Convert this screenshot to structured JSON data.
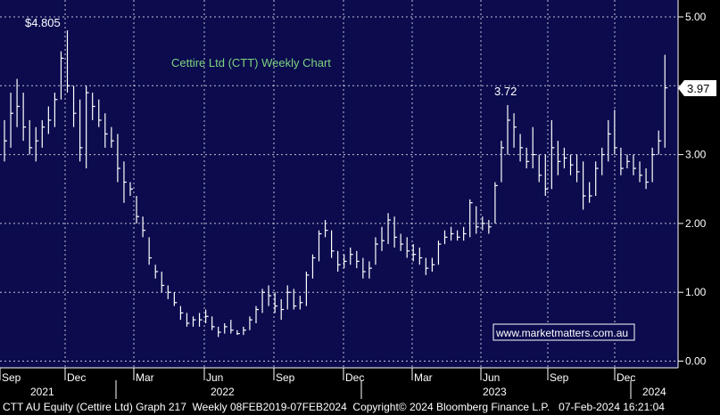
{
  "chart_data": {
    "type": "ohlc",
    "title": "Cettire Ltd (CTT) Weekly Chart",
    "watermark": "www.marketmatters.com.au",
    "ylim": [
      -0.1,
      5.1
    ],
    "y_ticks": [
      {
        "value": 5.0,
        "label": "5.00"
      },
      {
        "value": 4.0,
        "label": "4.00"
      },
      {
        "value": 3.0,
        "label": "3.00"
      },
      {
        "value": 2.0,
        "label": "2.00"
      },
      {
        "value": 1.0,
        "label": "1.00"
      },
      {
        "value": 0.0,
        "label": "0.00"
      }
    ],
    "x_month_labels": [
      "Sep",
      "Dec",
      "Mar",
      "Jun",
      "Sep",
      "Dec",
      "Mar",
      "Jun",
      "Sep",
      "Dec"
    ],
    "x_year_labels": [
      "2021",
      "2022",
      "2023",
      "2024"
    ],
    "last_price_label": "3.97",
    "annotations": [
      "$4.805",
      "3.72"
    ],
    "bars": [
      {
        "t": 0.0,
        "h": 3.5,
        "l": 2.9,
        "c": 3.2
      },
      {
        "t": 0.3,
        "h": 3.9,
        "l": 3.1,
        "c": 3.6
      },
      {
        "t": 0.6,
        "h": 4.1,
        "l": 3.4,
        "c": 3.7
      },
      {
        "t": 0.9,
        "h": 3.9,
        "l": 3.2,
        "c": 3.4
      },
      {
        "t": 1.2,
        "h": 3.5,
        "l": 3.0,
        "c": 3.1
      },
      {
        "t": 1.5,
        "h": 3.4,
        "l": 2.9,
        "c": 3.2
      },
      {
        "t": 1.8,
        "h": 3.5,
        "l": 3.1,
        "c": 3.4
      },
      {
        "t": 2.1,
        "h": 3.7,
        "l": 3.3,
        "c": 3.5
      },
      {
        "t": 2.4,
        "h": 3.9,
        "l": 3.4,
        "c": 3.8
      },
      {
        "t": 2.7,
        "h": 4.5,
        "l": 3.8,
        "c": 4.4
      },
      {
        "t": 3.0,
        "h": 4.805,
        "l": 3.9,
        "c": 4.0
      },
      {
        "t": 3.3,
        "h": 4.0,
        "l": 3.4,
        "c": 3.6
      },
      {
        "t": 3.6,
        "h": 3.8,
        "l": 2.9,
        "c": 3.1
      },
      {
        "t": 3.9,
        "h": 4.0,
        "l": 2.8,
        "c": 3.9
      },
      {
        "t": 4.2,
        "h": 3.9,
        "l": 3.5,
        "c": 3.7
      },
      {
        "t": 4.5,
        "h": 3.8,
        "l": 3.4,
        "c": 3.5
      },
      {
        "t": 4.8,
        "h": 3.6,
        "l": 3.1,
        "c": 3.3
      },
      {
        "t": 5.1,
        "h": 3.4,
        "l": 3.1,
        "c": 3.2
      },
      {
        "t": 5.4,
        "h": 3.3,
        "l": 2.6,
        "c": 2.8
      },
      {
        "t": 5.7,
        "h": 2.9,
        "l": 2.3,
        "c": 2.6
      },
      {
        "t": 6.0,
        "h": 2.6,
        "l": 2.4,
        "c": 2.5
      },
      {
        "t": 6.3,
        "h": 2.4,
        "l": 2.0,
        "c": 2.1
      },
      {
        "t": 6.6,
        "h": 2.1,
        "l": 1.8,
        "c": 1.9
      },
      {
        "t": 6.9,
        "h": 1.8,
        "l": 1.4,
        "c": 1.5
      },
      {
        "t": 7.2,
        "h": 1.4,
        "l": 1.2,
        "c": 1.3
      },
      {
        "t": 7.5,
        "h": 1.3,
        "l": 1.0,
        "c": 1.1
      },
      {
        "t": 7.8,
        "h": 1.1,
        "l": 0.9,
        "c": 1.0
      },
      {
        "t": 8.1,
        "h": 1.0,
        "l": 0.8,
        "c": 0.85
      },
      {
        "t": 8.4,
        "h": 0.8,
        "l": 0.6,
        "c": 0.7
      },
      {
        "t": 8.7,
        "h": 0.7,
        "l": 0.5,
        "c": 0.55
      },
      {
        "t": 9.0,
        "h": 0.65,
        "l": 0.5,
        "c": 0.6
      },
      {
        "t": 9.3,
        "h": 0.7,
        "l": 0.5,
        "c": 0.6
      },
      {
        "t": 9.6,
        "h": 0.75,
        "l": 0.55,
        "c": 0.65
      },
      {
        "t": 9.9,
        "h": 0.65,
        "l": 0.45,
        "c": 0.5
      },
      {
        "t": 10.2,
        "h": 0.5,
        "l": 0.35,
        "c": 0.42
      },
      {
        "t": 10.5,
        "h": 0.55,
        "l": 0.4,
        "c": 0.5
      },
      {
        "t": 10.8,
        "h": 0.6,
        "l": 0.4,
        "c": 0.45
      },
      {
        "t": 11.1,
        "h": 0.45,
        "l": 0.38,
        "c": 0.4
      },
      {
        "t": 11.4,
        "h": 0.5,
        "l": 0.38,
        "c": 0.45
      },
      {
        "t": 11.7,
        "h": 0.65,
        "l": 0.45,
        "c": 0.6
      },
      {
        "t": 12.0,
        "h": 0.8,
        "l": 0.55,
        "c": 0.75
      },
      {
        "t": 12.3,
        "h": 1.05,
        "l": 0.7,
        "c": 1.0
      },
      {
        "t": 12.6,
        "h": 1.1,
        "l": 0.8,
        "c": 0.95
      },
      {
        "t": 12.9,
        "h": 1.0,
        "l": 0.7,
        "c": 0.8
      },
      {
        "t": 13.2,
        "h": 0.9,
        "l": 0.6,
        "c": 0.75
      },
      {
        "t": 13.5,
        "h": 1.1,
        "l": 0.75,
        "c": 1.0
      },
      {
        "t": 13.8,
        "h": 1.05,
        "l": 0.75,
        "c": 0.8
      },
      {
        "t": 14.1,
        "h": 0.95,
        "l": 0.75,
        "c": 0.85
      },
      {
        "t": 14.4,
        "h": 1.3,
        "l": 0.8,
        "c": 1.25
      },
      {
        "t": 14.7,
        "h": 1.55,
        "l": 1.2,
        "c": 1.5
      },
      {
        "t": 15.0,
        "h": 1.9,
        "l": 1.45,
        "c": 1.85
      },
      {
        "t": 15.3,
        "h": 2.05,
        "l": 1.8,
        "c": 1.9
      },
      {
        "t": 15.6,
        "h": 1.9,
        "l": 1.5,
        "c": 1.6
      },
      {
        "t": 15.9,
        "h": 1.6,
        "l": 1.3,
        "c": 1.4
      },
      {
        "t": 16.2,
        "h": 1.55,
        "l": 1.35,
        "c": 1.45
      },
      {
        "t": 16.5,
        "h": 1.65,
        "l": 1.4,
        "c": 1.55
      },
      {
        "t": 16.8,
        "h": 1.6,
        "l": 1.35,
        "c": 1.45
      },
      {
        "t": 17.1,
        "h": 1.5,
        "l": 1.2,
        "c": 1.3
      },
      {
        "t": 17.4,
        "h": 1.45,
        "l": 1.2,
        "c": 1.35
      },
      {
        "t": 17.7,
        "h": 1.8,
        "l": 1.4,
        "c": 1.7
      },
      {
        "t": 18.0,
        "h": 1.95,
        "l": 1.6,
        "c": 1.75
      },
      {
        "t": 18.3,
        "h": 2.15,
        "l": 1.7,
        "c": 2.05
      },
      {
        "t": 18.6,
        "h": 2.1,
        "l": 1.65,
        "c": 1.8
      },
      {
        "t": 18.9,
        "h": 1.85,
        "l": 1.6,
        "c": 1.7
      },
      {
        "t": 19.2,
        "h": 1.8,
        "l": 1.5,
        "c": 1.6
      },
      {
        "t": 19.5,
        "h": 1.7,
        "l": 1.45,
        "c": 1.55
      },
      {
        "t": 19.8,
        "h": 1.65,
        "l": 1.4,
        "c": 1.5
      },
      {
        "t": 20.1,
        "h": 1.5,
        "l": 1.25,
        "c": 1.35
      },
      {
        "t": 20.4,
        "h": 1.5,
        "l": 1.3,
        "c": 1.4
      },
      {
        "t": 20.7,
        "h": 1.75,
        "l": 1.4,
        "c": 1.7
      },
      {
        "t": 21.0,
        "h": 1.9,
        "l": 1.7,
        "c": 1.8
      },
      {
        "t": 21.3,
        "h": 1.95,
        "l": 1.75,
        "c": 1.85
      },
      {
        "t": 21.6,
        "h": 1.9,
        "l": 1.75,
        "c": 1.8
      },
      {
        "t": 21.9,
        "h": 1.95,
        "l": 1.75,
        "c": 1.85
      },
      {
        "t": 22.2,
        "h": 2.35,
        "l": 1.8,
        "c": 2.3
      },
      {
        "t": 22.5,
        "h": 2.25,
        "l": 1.85,
        "c": 1.95
      },
      {
        "t": 22.8,
        "h": 2.1,
        "l": 1.9,
        "c": 2.0
      },
      {
        "t": 23.1,
        "h": 2.05,
        "l": 1.85,
        "c": 1.95
      },
      {
        "t": 23.4,
        "h": 2.6,
        "l": 2.0,
        "c": 2.55
      },
      {
        "t": 23.7,
        "h": 3.2,
        "l": 2.6,
        "c": 3.1
      },
      {
        "t": 24.0,
        "h": 3.72,
        "l": 3.0,
        "c": 3.5
      },
      {
        "t": 24.3,
        "h": 3.6,
        "l": 3.1,
        "c": 3.4
      },
      {
        "t": 24.6,
        "h": 3.3,
        "l": 2.9,
        "c": 3.1
      },
      {
        "t": 24.9,
        "h": 3.1,
        "l": 2.8,
        "c": 2.9
      },
      {
        "t": 25.2,
        "h": 3.4,
        "l": 2.8,
        "c": 3.0
      },
      {
        "t": 25.5,
        "h": 3.0,
        "l": 2.6,
        "c": 2.7
      },
      {
        "t": 25.8,
        "h": 3.0,
        "l": 2.4,
        "c": 2.5
      },
      {
        "t": 26.1,
        "h": 3.5,
        "l": 2.5,
        "c": 3.1
      },
      {
        "t": 26.4,
        "h": 3.2,
        "l": 2.7,
        "c": 2.9
      },
      {
        "t": 26.7,
        "h": 3.1,
        "l": 2.8,
        "c": 2.95
      },
      {
        "t": 27.0,
        "h": 3.0,
        "l": 2.7,
        "c": 2.85
      },
      {
        "t": 27.3,
        "h": 3.0,
        "l": 2.6,
        "c": 2.75
      },
      {
        "t": 27.6,
        "h": 2.9,
        "l": 2.2,
        "c": 2.4
      },
      {
        "t": 27.9,
        "h": 2.6,
        "l": 2.3,
        "c": 2.4
      },
      {
        "t": 28.2,
        "h": 2.9,
        "l": 2.4,
        "c": 2.8
      },
      {
        "t": 28.5,
        "h": 3.1,
        "l": 2.7,
        "c": 3.0
      },
      {
        "t": 28.8,
        "h": 3.5,
        "l": 2.9,
        "c": 3.3
      },
      {
        "t": 29.1,
        "h": 3.65,
        "l": 3.0,
        "c": 3.1
      },
      {
        "t": 29.4,
        "h": 3.1,
        "l": 2.7,
        "c": 2.8
      },
      {
        "t": 29.7,
        "h": 3.0,
        "l": 2.8,
        "c": 2.9
      },
      {
        "t": 30.0,
        "h": 3.0,
        "l": 2.7,
        "c": 2.8
      },
      {
        "t": 30.3,
        "h": 2.9,
        "l": 2.6,
        "c": 2.7
      },
      {
        "t": 30.6,
        "h": 2.8,
        "l": 2.5,
        "c": 2.6
      },
      {
        "t": 30.9,
        "h": 3.1,
        "l": 2.6,
        "c": 3.0
      },
      {
        "t": 31.2,
        "h": 3.35,
        "l": 3.0,
        "c": 3.2
      },
      {
        "t": 31.5,
        "h": 4.45,
        "l": 3.1,
        "c": 3.97
      }
    ]
  }
}
